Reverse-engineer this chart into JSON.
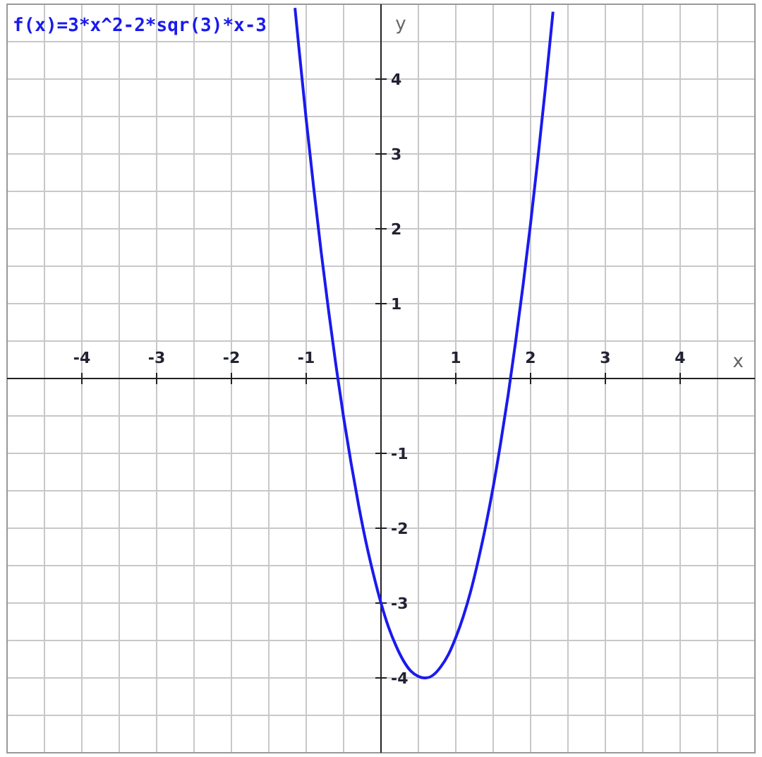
{
  "chart_data": {
    "type": "line",
    "title": "f(x)=3*x^2-2*sqr(3)*x-3",
    "xlabel": "x",
    "ylabel": "y",
    "xlim": [
      -5,
      5
    ],
    "ylim": [
      -5,
      5
    ],
    "xticks": [
      {
        "value": -4.5,
        "label": null
      },
      -4,
      {
        "value": -3.5,
        "label": null
      },
      -3,
      {
        "value": -2.5,
        "label": null
      },
      -2,
      {
        "value": -1.5,
        "label": null
      },
      -1,
      {
        "value": -0.5,
        "label": null
      },
      {
        "value": 0.5,
        "label": null
      },
      1,
      {
        "value": 1.5,
        "label": null
      },
      2,
      {
        "value": 2.5,
        "label": null
      },
      3,
      {
        "value": 3.5,
        "label": null
      },
      4,
      {
        "value": 4.5,
        "label": null
      }
    ],
    "yticks": [
      {
        "value": -4.5,
        "label": null
      },
      -4,
      {
        "value": -3.5,
        "label": null
      },
      -3,
      {
        "value": -2.5,
        "label": null
      },
      -2,
      {
        "value": -1.5,
        "label": null
      },
      -1,
      {
        "value": -0.5,
        "label": null
      },
      {
        "value": 0.5,
        "label": null
      },
      1,
      {
        "value": 1.5,
        "label": null
      },
      2,
      {
        "value": 2.5,
        "label": null
      },
      3,
      {
        "value": 3.5,
        "label": null
      },
      4,
      {
        "value": 4.5,
        "label": null
      }
    ],
    "grid": true,
    "marker": "none",
    "line_style": "solid",
    "series": [
      {
        "color": "#1a1aee",
        "x": [
          -1.15,
          -1.1,
          -1.0,
          -0.9,
          -0.8,
          -0.7,
          -0.6,
          -0.5,
          -0.4,
          -0.3,
          -0.2,
          -0.1,
          0,
          0.1,
          0.2,
          0.3,
          0.4,
          0.5,
          0.577,
          0.6,
          0.7,
          0.8,
          0.9,
          1.0,
          1.1,
          1.2,
          1.3,
          1.4,
          1.5,
          1.6,
          1.7,
          1.8,
          1.9,
          2.0,
          2.1,
          2.2,
          2.3
        ],
        "values": [
          4.95,
          4.44,
          3.46,
          2.55,
          1.69,
          0.9,
          0.16,
          -0.52,
          -1.13,
          -1.69,
          -2.19,
          -2.62,
          -3,
          -3.32,
          -3.57,
          -3.77,
          -3.91,
          -3.98,
          -4,
          -4,
          -3.96,
          -3.85,
          -3.69,
          -3.46,
          -3.18,
          -2.84,
          -2.43,
          -1.97,
          -1.45,
          -0.86,
          -0.22,
          0.49,
          1.25,
          2.07,
          2.96,
          3.9,
          4.9
        ]
      }
    ]
  }
}
